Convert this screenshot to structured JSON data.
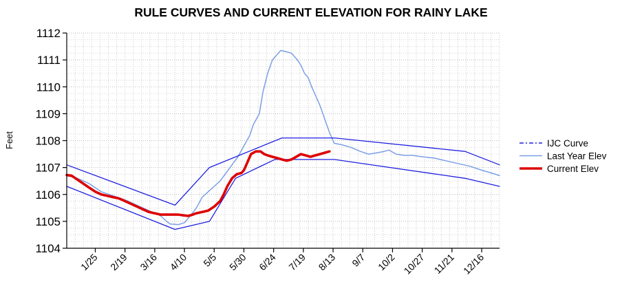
{
  "chart_data": {
    "type": "line",
    "title": "RULE CURVES AND CURRENT ELEVATION FOR RAINY LAKE",
    "ylabel": "Feet",
    "xlabel": "",
    "x_unit": "day_of_year",
    "xlim": [
      1,
      365
    ],
    "ylim": [
      1104,
      1112
    ],
    "yticks": [
      1104,
      1105,
      1106,
      1107,
      1108,
      1109,
      1110,
      1111,
      1112
    ],
    "xticks": [
      {
        "label": "1/25",
        "x": 25
      },
      {
        "label": "2/19",
        "x": 50
      },
      {
        "label": "3/16",
        "x": 75
      },
      {
        "label": "4/10",
        "x": 100
      },
      {
        "label": "5/5",
        "x": 125
      },
      {
        "label": "5/30",
        "x": 150
      },
      {
        "label": "6/24",
        "x": 175
      },
      {
        "label": "7/19",
        "x": 200
      },
      {
        "label": "8/13",
        "x": 225
      },
      {
        "label": "9/7",
        "x": 250
      },
      {
        "label": "10/2",
        "x": 275
      },
      {
        "label": "10/27",
        "x": 300
      },
      {
        "label": "11/21",
        "x": 325
      },
      {
        "label": "12/16",
        "x": 350
      }
    ],
    "grid": true,
    "legend_position": "right",
    "series": [
      {
        "name": "IJC Curve",
        "role": "upper",
        "color": "#1e1ee0",
        "points": [
          [
            1,
            1107.1
          ],
          [
            92,
            1105.6
          ],
          [
            121,
            1107.0
          ],
          [
            182,
            1108.1
          ],
          [
            226,
            1108.1
          ],
          [
            336,
            1107.6
          ],
          [
            365,
            1107.1
          ]
        ]
      },
      {
        "name": "",
        "role": "lower",
        "color": "#1e1ee0",
        "points": [
          [
            1,
            1106.3
          ],
          [
            92,
            1104.7
          ],
          [
            121,
            1105.0
          ],
          [
            143,
            1106.6
          ],
          [
            176,
            1107.3
          ],
          [
            226,
            1107.3
          ],
          [
            336,
            1106.6
          ],
          [
            365,
            1106.3
          ]
        ]
      },
      {
        "name": "Last Year Elev",
        "color": "#7b9fe6",
        "points": [
          [
            1,
            1106.7
          ],
          [
            10,
            1106.6
          ],
          [
            20,
            1106.4
          ],
          [
            30,
            1106.1
          ],
          [
            40,
            1105.95
          ],
          [
            50,
            1105.8
          ],
          [
            60,
            1105.6
          ],
          [
            70,
            1105.4
          ],
          [
            75,
            1105.3
          ],
          [
            80,
            1105.2
          ],
          [
            85,
            1105.0
          ],
          [
            88,
            1104.9
          ],
          [
            95,
            1104.88
          ],
          [
            100,
            1104.95
          ],
          [
            105,
            1105.2
          ],
          [
            110,
            1105.5
          ],
          [
            115,
            1105.9
          ],
          [
            120,
            1106.1
          ],
          [
            125,
            1106.3
          ],
          [
            130,
            1106.5
          ],
          [
            135,
            1106.8
          ],
          [
            140,
            1107.1
          ],
          [
            145,
            1107.4
          ],
          [
            150,
            1107.8
          ],
          [
            155,
            1108.2
          ],
          [
            158,
            1108.6
          ],
          [
            163,
            1109.0
          ],
          [
            166,
            1109.8
          ],
          [
            170,
            1110.5
          ],
          [
            174,
            1111.0
          ],
          [
            178,
            1111.2
          ],
          [
            181,
            1111.35
          ],
          [
            186,
            1111.3
          ],
          [
            190,
            1111.25
          ],
          [
            195,
            1111.0
          ],
          [
            198,
            1110.8
          ],
          [
            201,
            1110.5
          ],
          [
            204,
            1110.35
          ],
          [
            207,
            1110.0
          ],
          [
            210,
            1109.7
          ],
          [
            214,
            1109.3
          ],
          [
            218,
            1108.8
          ],
          [
            222,
            1108.3
          ],
          [
            226,
            1107.9
          ],
          [
            232,
            1107.85
          ],
          [
            240,
            1107.75
          ],
          [
            248,
            1107.6
          ],
          [
            255,
            1107.5
          ],
          [
            262,
            1107.55
          ],
          [
            268,
            1107.6
          ],
          [
            272,
            1107.65
          ],
          [
            278,
            1107.5
          ],
          [
            285,
            1107.45
          ],
          [
            292,
            1107.45
          ],
          [
            300,
            1107.4
          ],
          [
            310,
            1107.35
          ],
          [
            320,
            1107.25
          ],
          [
            330,
            1107.15
          ],
          [
            340,
            1107.05
          ],
          [
            350,
            1106.9
          ],
          [
            358,
            1106.8
          ],
          [
            365,
            1106.7
          ]
        ]
      },
      {
        "name": "Current Elev",
        "color": "#dd0000",
        "points": [
          [
            1,
            1106.72
          ],
          [
            5,
            1106.7
          ],
          [
            10,
            1106.55
          ],
          [
            15,
            1106.4
          ],
          [
            20,
            1106.25
          ],
          [
            25,
            1106.1
          ],
          [
            30,
            1106.0
          ],
          [
            35,
            1105.95
          ],
          [
            40,
            1105.9
          ],
          [
            45,
            1105.85
          ],
          [
            50,
            1105.75
          ],
          [
            55,
            1105.65
          ],
          [
            60,
            1105.55
          ],
          [
            65,
            1105.45
          ],
          [
            70,
            1105.35
          ],
          [
            75,
            1105.3
          ],
          [
            80,
            1105.25
          ],
          [
            85,
            1105.25
          ],
          [
            90,
            1105.25
          ],
          [
            95,
            1105.25
          ],
          [
            100,
            1105.22
          ],
          [
            103,
            1105.2
          ],
          [
            107,
            1105.25
          ],
          [
            110,
            1105.3
          ],
          [
            115,
            1105.35
          ],
          [
            120,
            1105.4
          ],
          [
            125,
            1105.55
          ],
          [
            130,
            1105.75
          ],
          [
            133,
            1106.0
          ],
          [
            136,
            1106.3
          ],
          [
            140,
            1106.6
          ],
          [
            144,
            1106.75
          ],
          [
            148,
            1106.8
          ],
          [
            150,
            1106.9
          ],
          [
            153,
            1107.2
          ],
          [
            156,
            1107.5
          ],
          [
            160,
            1107.6
          ],
          [
            164,
            1107.6
          ],
          [
            167,
            1107.5
          ],
          [
            170,
            1107.45
          ],
          [
            174,
            1107.4
          ],
          [
            178,
            1107.35
          ],
          [
            182,
            1107.3
          ],
          [
            186,
            1107.25
          ],
          [
            190,
            1107.3
          ],
          [
            194,
            1107.4
          ],
          [
            198,
            1107.5
          ],
          [
            202,
            1107.45
          ],
          [
            206,
            1107.4
          ],
          [
            210,
            1107.45
          ],
          [
            214,
            1107.5
          ],
          [
            218,
            1107.55
          ],
          [
            222,
            1107.6
          ]
        ]
      }
    ],
    "legend": [
      {
        "label": "IJC Curve",
        "color": "#1e1ee0",
        "style": "dashdot"
      },
      {
        "label": "Last Year Elev",
        "color": "#7b9fe6",
        "style": "solid"
      },
      {
        "label": "Current Elev",
        "color": "#dd0000",
        "style": "thick"
      }
    ]
  }
}
